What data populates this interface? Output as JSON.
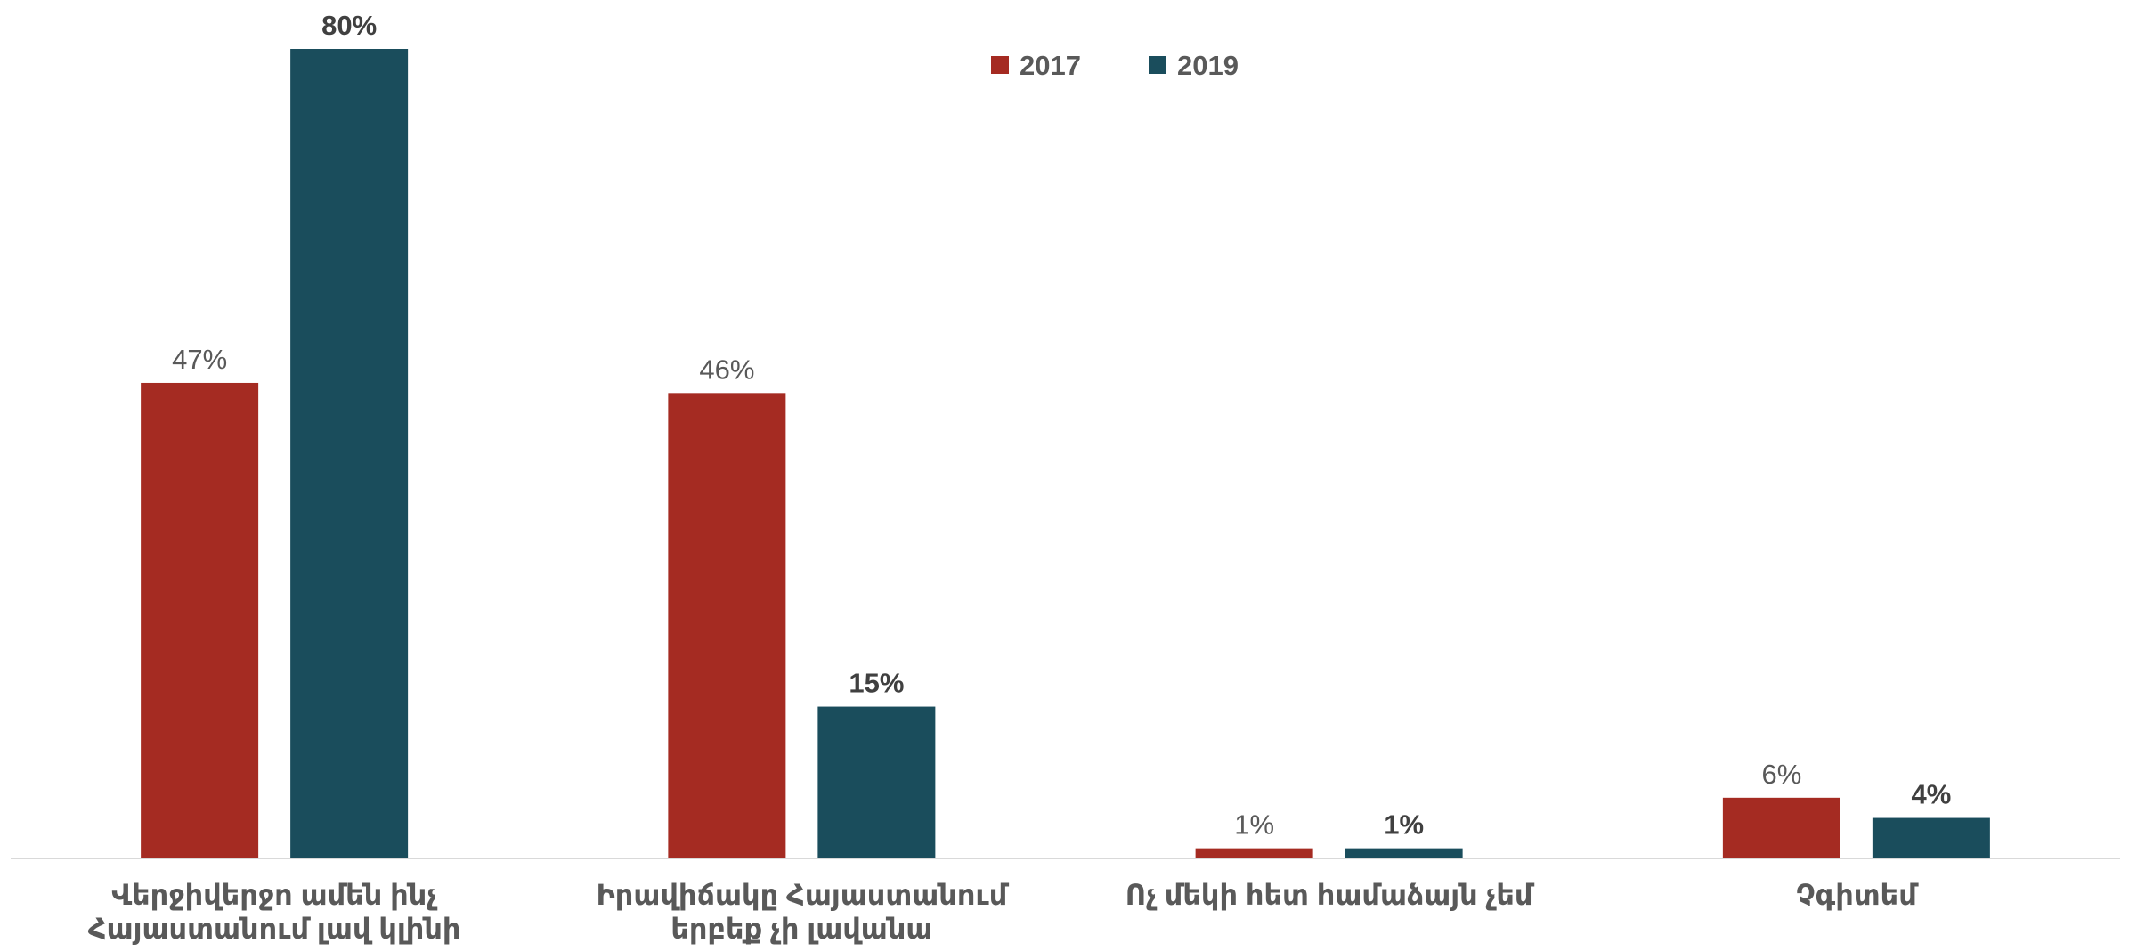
{
  "chart_data": {
    "type": "bar",
    "categories": [
      "Վերջիվերջո ամեն ինչ Հայաստանում լավ կլինի",
      "Իրավիճակը Հայաստանում երբեք չի լավանա",
      "Ոչ մեկի հետ համաձայն չեմ",
      "Չգիտեմ"
    ],
    "series": [
      {
        "name": "2017",
        "color": "#a52b22",
        "values": [
          47,
          46,
          1,
          6
        ],
        "value_labels": [
          "47%",
          "46%",
          "1%",
          "6%"
        ]
      },
      {
        "name": "2019",
        "color": "#1a4d5c",
        "values": [
          80,
          15,
          1,
          4
        ],
        "value_labels": [
          "80%",
          "15%",
          "1%",
          "4%"
        ]
      }
    ],
    "legend": "top"
  }
}
